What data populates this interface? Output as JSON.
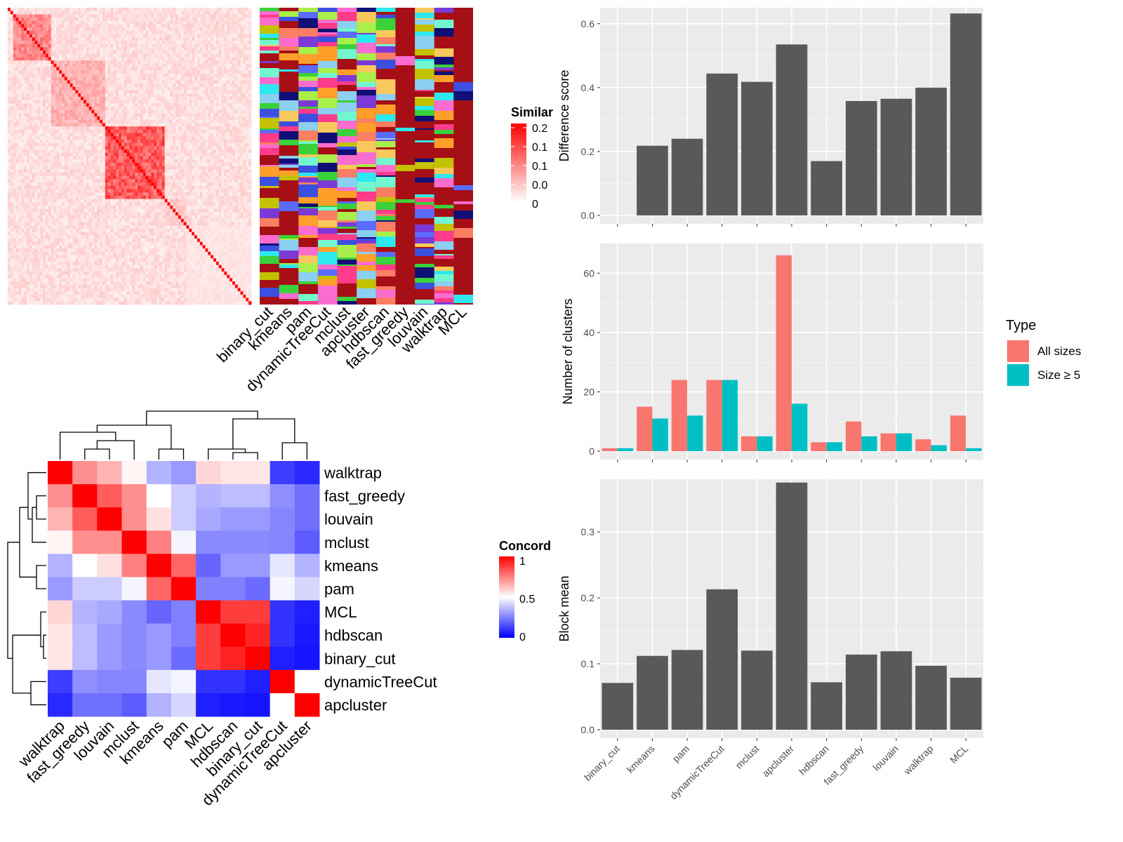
{
  "chart_data": [
    {
      "type": "heatmap",
      "title": "",
      "legend": {
        "title": "Similar",
        "ticks": [
          "0.2",
          "0.1",
          "0.1",
          "0.0",
          "0"
        ],
        "colors": [
          "#ff0000",
          "#ffffff"
        ],
        "placement": "right"
      },
      "note": "cell-by-cell similarity matrix with block structure along the diagonal",
      "x_labels": []
    },
    {
      "type": "heatmap",
      "title": "",
      "columns": [
        "binary_cut",
        "kmeans",
        "pam",
        "dynamicTreeCut",
        "mclust",
        "apcluster",
        "hdbscan",
        "fast_greedy",
        "louvain",
        "walktrap",
        "MCL"
      ],
      "background_color": "#a50f15",
      "note": "categorical cluster-assignment annotation per method"
    },
    {
      "type": "heatmap",
      "title": "",
      "rows": [
        "walktrap",
        "fast_greedy",
        "louvain",
        "mclust",
        "kmeans",
        "pam",
        "MCL",
        "hdbscan",
        "binary_cut",
        "dynamicTreeCut",
        "apcluster"
      ],
      "columns": [
        "walktrap",
        "fast_greedy",
        "louvain",
        "mclust",
        "kmeans",
        "pam",
        "MCL",
        "hdbscan",
        "binary_cut",
        "dynamicTreeCut",
        "apcluster"
      ],
      "values": [
        [
          1.0,
          0.72,
          0.65,
          0.52,
          0.35,
          0.3,
          0.58,
          0.55,
          0.55,
          0.12,
          0.08
        ],
        [
          0.72,
          1.0,
          0.82,
          0.72,
          0.5,
          0.4,
          0.35,
          0.37,
          0.37,
          0.28,
          0.22
        ],
        [
          0.65,
          0.82,
          1.0,
          0.72,
          0.56,
          0.4,
          0.33,
          0.3,
          0.3,
          0.26,
          0.22
        ],
        [
          0.52,
          0.72,
          0.72,
          1.0,
          0.75,
          0.48,
          0.27,
          0.27,
          0.27,
          0.26,
          0.18
        ],
        [
          0.35,
          0.5,
          0.56,
          0.75,
          1.0,
          0.8,
          0.2,
          0.3,
          0.3,
          0.45,
          0.35
        ],
        [
          0.3,
          0.4,
          0.4,
          0.48,
          0.8,
          1.0,
          0.25,
          0.25,
          0.21,
          0.48,
          0.42
        ],
        [
          0.58,
          0.35,
          0.33,
          0.27,
          0.2,
          0.25,
          1.0,
          0.88,
          0.88,
          0.1,
          0.06
        ],
        [
          0.55,
          0.37,
          0.3,
          0.27,
          0.3,
          0.25,
          0.88,
          1.0,
          0.93,
          0.1,
          0.05
        ],
        [
          0.55,
          0.37,
          0.3,
          0.27,
          0.3,
          0.21,
          0.88,
          0.93,
          1.0,
          0.06,
          0.04
        ],
        [
          0.12,
          0.28,
          0.26,
          0.26,
          0.45,
          0.48,
          0.1,
          0.1,
          0.06,
          1.0,
          0.5
        ],
        [
          0.08,
          0.22,
          0.22,
          0.18,
          0.35,
          0.42,
          0.06,
          0.05,
          0.04,
          0.5,
          1.0
        ]
      ],
      "legend": {
        "title": "Concord",
        "ticks": [
          "1",
          "0.5",
          "0"
        ],
        "colors": [
          "#ff0000",
          "#ffffff",
          "#0000ff"
        ],
        "placement": "right"
      }
    },
    {
      "type": "bar",
      "categories": [
        "binary_cut",
        "kmeans",
        "pam",
        "dynamicTreeCut",
        "mclust",
        "apcluster",
        "hdbscan",
        "fast_greedy",
        "louvain",
        "walktrap",
        "MCL"
      ],
      "values": [
        0,
        0.218,
        0.24,
        0.444,
        0.418,
        0.535,
        0.17,
        0.358,
        0.365,
        0.4,
        0.632
      ],
      "ylabel": "Difference score",
      "ylim": [
        0,
        0.65
      ],
      "yticks": [
        "0.0",
        "0.2",
        "0.4",
        "0.6"
      ],
      "grid": true
    },
    {
      "type": "bar",
      "categories": [
        "binary_cut",
        "kmeans",
        "pam",
        "dynamicTreeCut",
        "mclust",
        "apcluster",
        "hdbscan",
        "fast_greedy",
        "louvain",
        "walktrap",
        "MCL"
      ],
      "series": [
        {
          "name": "All sizes",
          "color": "#f8766d",
          "values": [
            1,
            15,
            24,
            24,
            5,
            66,
            3,
            10,
            6,
            4,
            12
          ]
        },
        {
          "name": "Size ≥ 5",
          "color": "#00bfc4",
          "values": [
            1,
            11,
            12,
            24,
            5,
            16,
            3,
            5,
            6,
            2,
            1
          ]
        }
      ],
      "ylabel": "Number of clusters",
      "ylim": [
        0,
        70
      ],
      "yticks": [
        "0",
        "20",
        "40",
        "60"
      ],
      "legend_title": "Type",
      "legend_placement": "right",
      "grid": true
    },
    {
      "type": "bar",
      "categories": [
        "binary_cut",
        "kmeans",
        "pam",
        "dynamicTreeCut",
        "mclust",
        "apcluster",
        "hdbscan",
        "fast_greedy",
        "louvain",
        "walktrap",
        "MCL"
      ],
      "values": [
        0.071,
        0.112,
        0.121,
        0.213,
        0.12,
        0.375,
        0.072,
        0.114,
        0.119,
        0.097,
        0.079
      ],
      "ylabel": "Block mean",
      "ylim": [
        0,
        0.38
      ],
      "yticks": [
        "0.0",
        "0.1",
        "0.2",
        "0.3"
      ],
      "grid": true
    }
  ]
}
